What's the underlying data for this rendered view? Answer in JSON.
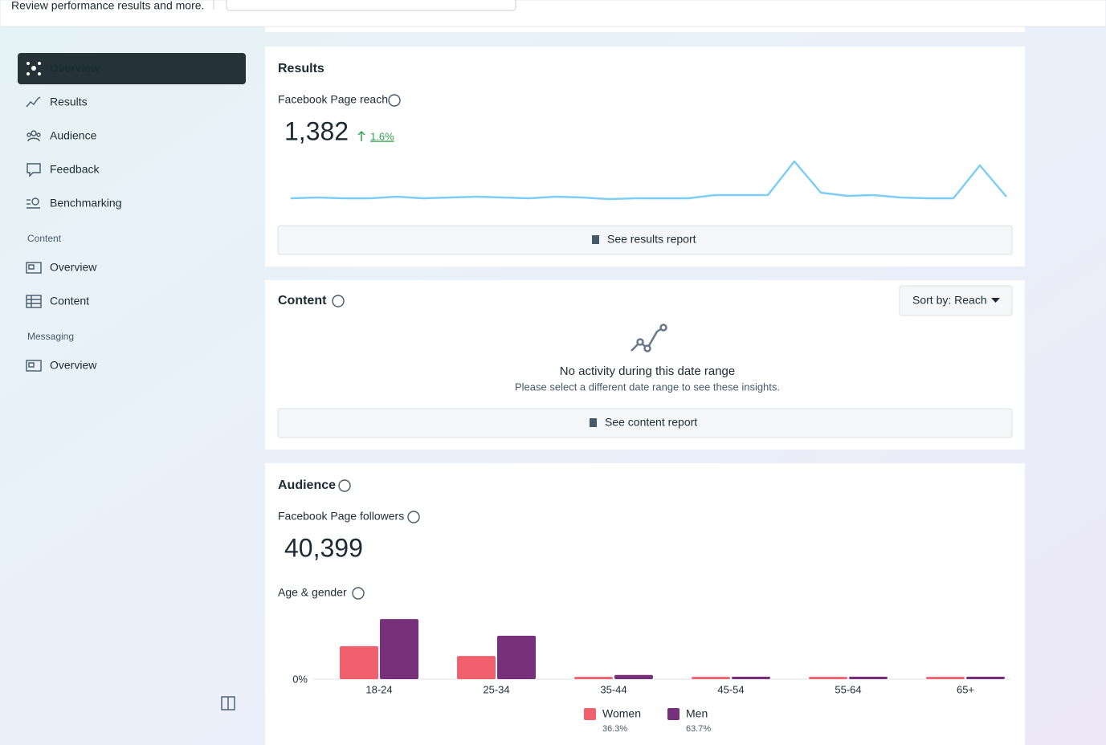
{
  "header": {
    "subtitle": "Review performance results and more."
  },
  "sidebar": {
    "items": [
      "Overview",
      "Results",
      "Audience",
      "Feedback",
      "Benchmarking"
    ],
    "sections": [
      {
        "title": "Content",
        "items": [
          "Overview",
          "Content"
        ]
      },
      {
        "title": "Messaging",
        "items": [
          "Overview"
        ]
      }
    ]
  },
  "results": {
    "title": "Results",
    "metric_label": "Facebook Page reach",
    "metric_value": "1,382",
    "change": "1.6%",
    "button": "See results report",
    "chart_data": {
      "type": "line",
      "color": "#7dcdf5",
      "values": [
        3,
        4,
        3,
        3,
        5,
        3,
        4,
        5,
        4,
        3,
        5,
        4,
        2,
        3,
        3,
        3,
        7,
        7,
        7,
        49,
        10,
        6,
        7,
        4,
        3,
        3,
        44,
        5
      ],
      "ylim": [
        0,
        55
      ]
    }
  },
  "content": {
    "title": "Content",
    "sort": "Sort by: Reach",
    "empty_title": "No activity during this date range",
    "empty_text": "Please select a different date range to see these insights.",
    "button": "See content report"
  },
  "audience": {
    "title": "Audience",
    "metric_label": "Facebook Page followers",
    "metric_value": "40,399",
    "chart_label": "Age & gender",
    "chart_data": {
      "type": "bar",
      "categories": [
        "18-24",
        "25-34",
        "35-44",
        "45-54",
        "55-64",
        "65+"
      ],
      "series": [
        {
          "name": "Women",
          "color": "#f0606d",
          "share": "36.3%",
          "values": [
            18.2,
            12.8,
            1.3,
            1.3,
            1.3,
            1.3
          ]
        },
        {
          "name": "Men",
          "color": "#77307a",
          "share": "63.7%",
          "values": [
            33.2,
            24.0,
            2.3,
            1.4,
            1.4,
            1.4
          ]
        }
      ],
      "ylim": [
        0,
        35
      ],
      "yticks": [
        {
          "value": 0,
          "label": "0%"
        }
      ]
    }
  }
}
